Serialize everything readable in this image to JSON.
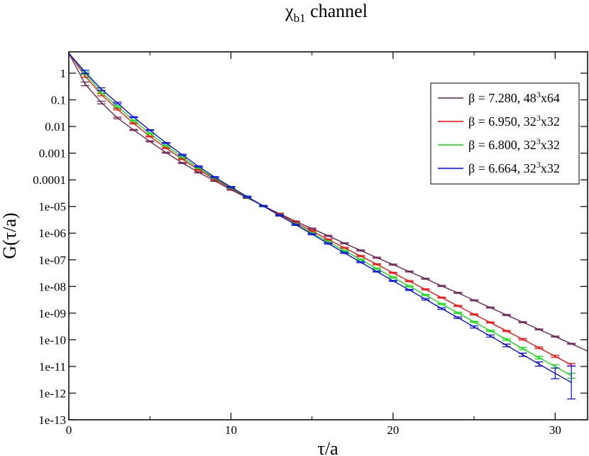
{
  "chart_data": {
    "type": "line",
    "title": "χ",
    "title_subscript": "b1",
    "title_suffix": " channel",
    "xlabel": "τ/a",
    "ylabel": "G(τ/a)",
    "xlim": [
      0,
      32
    ],
    "ylim_log10": [
      -13,
      0.8
    ],
    "y_scale": "log",
    "grid": false,
    "legend_position": "top-right",
    "x_ticks": [
      {
        "value": 0,
        "label": "0"
      },
      {
        "value": 10,
        "label": "10"
      },
      {
        "value": 20,
        "label": "20"
      },
      {
        "value": 30,
        "label": "30"
      }
    ],
    "y_ticks": [
      {
        "exp": 0,
        "label": "1"
      },
      {
        "exp": -1,
        "label": "0.1"
      },
      {
        "exp": -2,
        "label": "0.01"
      },
      {
        "exp": -3,
        "label": "0.001"
      },
      {
        "exp": -4,
        "label": "0.0001"
      },
      {
        "exp": -5,
        "label": "1e-05"
      },
      {
        "exp": -6,
        "label": "1e-06"
      },
      {
        "exp": -7,
        "label": "1e-07"
      },
      {
        "exp": -8,
        "label": "1e-08"
      },
      {
        "exp": -9,
        "label": "1e-09"
      },
      {
        "exp": -10,
        "label": "1e-10"
      },
      {
        "exp": -11,
        "label": "1e-11"
      },
      {
        "exp": -12,
        "label": "1e-12"
      },
      {
        "exp": -13,
        "label": "1e-13"
      }
    ],
    "series": [
      {
        "name_prefix": "β = 7.280, 48",
        "name_sup": "3",
        "name_suffix": "x64",
        "color": "#6b1a4e",
        "x": [
          0,
          1,
          2,
          3,
          4,
          5,
          6,
          7,
          8,
          9,
          10,
          11,
          12,
          13,
          14,
          15,
          16,
          17,
          18,
          19,
          20,
          21,
          22,
          23,
          24,
          25,
          26,
          27,
          28,
          29,
          30,
          31,
          32
        ],
        "log10_y": [
          0.75,
          -0.4,
          -1.1,
          -1.68,
          -2.13,
          -2.56,
          -2.98,
          -3.37,
          -3.72,
          -4.04,
          -4.37,
          -4.68,
          -4.98,
          -5.27,
          -5.56,
          -5.83,
          -6.1,
          -6.38,
          -6.65,
          -6.92,
          -7.18,
          -7.44,
          -7.71,
          -7.98,
          -8.24,
          -8.52,
          -8.79,
          -9.07,
          -9.34,
          -9.61,
          -9.88,
          -10.15,
          -10.42
        ],
        "err_log10": [
          0,
          0.07,
          0.05,
          0.03,
          0.02,
          0.02,
          0.02,
          0.02,
          0.02,
          0.02,
          0.02,
          0.02,
          0.02,
          0.02,
          0.02,
          0.02,
          0.02,
          0.02,
          0.02,
          0.02,
          0.02,
          0.02,
          0.02,
          0.02,
          0.02,
          0.02,
          0.02,
          0.02,
          0.02,
          0.02,
          0.02,
          0.02,
          0
        ]
      },
      {
        "name_prefix": "β = 6.950, 32",
        "name_sup": "3",
        "name_suffix": "x32",
        "color": "#ff0000",
        "x": [
          0,
          1,
          2,
          3,
          4,
          5,
          6,
          7,
          8,
          9,
          10,
          11,
          12,
          13,
          14,
          15,
          16,
          17,
          18,
          19,
          20,
          21,
          22,
          23,
          24,
          25,
          26,
          27,
          28,
          29,
          30,
          31
        ],
        "log10_y": [
          0.75,
          -0.1,
          -0.8,
          -1.35,
          -1.88,
          -2.37,
          -2.81,
          -3.22,
          -3.62,
          -3.98,
          -4.33,
          -4.66,
          -4.98,
          -5.3,
          -5.61,
          -5.92,
          -6.24,
          -6.55,
          -6.86,
          -7.17,
          -7.49,
          -7.8,
          -8.11,
          -8.42,
          -8.73,
          -9.05,
          -9.35,
          -9.67,
          -9.98,
          -10.3,
          -10.62,
          -10.94
        ],
        "err_log10": [
          0,
          0.05,
          0.05,
          0.03,
          0.02,
          0.02,
          0.02,
          0.02,
          0.02,
          0.02,
          0.02,
          0.02,
          0.02,
          0.02,
          0.02,
          0.02,
          0.02,
          0.02,
          0.02,
          0.02,
          0.02,
          0.02,
          0.02,
          0.02,
          0.02,
          0.02,
          0.02,
          0.02,
          0.03,
          0.03,
          0.04,
          0.05
        ]
      },
      {
        "name_prefix": "β = 6.800, 32",
        "name_sup": "3",
        "name_suffix": "x32",
        "color": "#00e400",
        "x": [
          0,
          1,
          2,
          3,
          4,
          5,
          6,
          7,
          8,
          9,
          10,
          11,
          12,
          13,
          14,
          15,
          16,
          17,
          18,
          19,
          20,
          21,
          22,
          23,
          24,
          25,
          26,
          27,
          28,
          29,
          30,
          31
        ],
        "log10_y": [
          0.75,
          0,
          -0.72,
          -1.25,
          -1.78,
          -2.26,
          -2.72,
          -3.15,
          -3.56,
          -3.94,
          -4.3,
          -4.65,
          -4.99,
          -5.33,
          -5.66,
          -5.99,
          -6.32,
          -6.66,
          -6.99,
          -7.33,
          -7.66,
          -7.99,
          -8.32,
          -8.66,
          -8.99,
          -9.33,
          -9.66,
          -9.99,
          -10.33,
          -10.67,
          -11,
          -11.35
        ],
        "err_log10": [
          0,
          0.04,
          0.05,
          0.03,
          0.02,
          0.02,
          0.02,
          0.02,
          0.02,
          0.02,
          0.02,
          0.02,
          0.02,
          0.02,
          0.02,
          0.02,
          0.02,
          0.02,
          0.02,
          0.02,
          0.02,
          0.02,
          0.02,
          0.02,
          0.02,
          0.02,
          0.02,
          0.03,
          0.04,
          0.05,
          0.06,
          0.09
        ]
      },
      {
        "name_prefix": "β = 6.664, 32",
        "name_sup": "3",
        "name_suffix": "x32",
        "color": "#0000ff",
        "x": [
          0,
          1,
          2,
          3,
          4,
          5,
          6,
          7,
          8,
          9,
          10,
          11,
          12,
          13,
          14,
          15,
          16,
          17,
          18,
          19,
          20,
          21,
          22,
          23,
          24,
          25,
          26,
          27,
          28,
          29,
          30,
          31
        ],
        "log10_y": [
          0.75,
          0.05,
          -0.6,
          -1.12,
          -1.65,
          -2.14,
          -2.62,
          -3.06,
          -3.5,
          -3.9,
          -4.27,
          -4.63,
          -4.98,
          -5.34,
          -5.69,
          -6.04,
          -6.39,
          -6.74,
          -7.09,
          -7.44,
          -7.79,
          -8.13,
          -8.48,
          -8.83,
          -9.17,
          -9.52,
          -9.86,
          -10.21,
          -10.56,
          -10.91,
          -11.26,
          -11.6
        ],
        "err_log10": [
          0,
          0.06,
          0.05,
          0.03,
          0.02,
          0.02,
          0.02,
          0.02,
          0.02,
          0.02,
          0.02,
          0.02,
          0.02,
          0.02,
          0.02,
          0.02,
          0.02,
          0.02,
          0.02,
          0.02,
          0.02,
          0.02,
          0.03,
          0.03,
          0.03,
          0.04,
          0.04,
          0.05,
          0.06,
          0.08,
          0.2,
          0.62
        ]
      }
    ]
  }
}
